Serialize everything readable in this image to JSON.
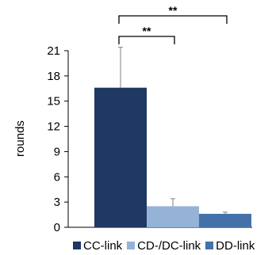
{
  "chart_data": {
    "type": "bar",
    "categories": [
      "CC-link",
      "CD-/DC-link",
      "DD-link"
    ],
    "values": [
      16.6,
      2.5,
      1.6
    ],
    "errors": [
      4.8,
      0.9,
      0.2
    ],
    "colors": [
      "#1f3864",
      "#95b3d7",
      "#4472a8"
    ],
    "ylabel": "rounds",
    "xlabel": "",
    "title": "",
    "ylim": [
      0,
      21
    ],
    "yticks": [
      0,
      3,
      6,
      9,
      12,
      15,
      18,
      21
    ],
    "grid": false,
    "legend_placement": "bottom",
    "significance": [
      {
        "from": 0,
        "to": 1,
        "label": "**"
      },
      {
        "from": 0,
        "to": 2,
        "label": "**"
      }
    ]
  }
}
